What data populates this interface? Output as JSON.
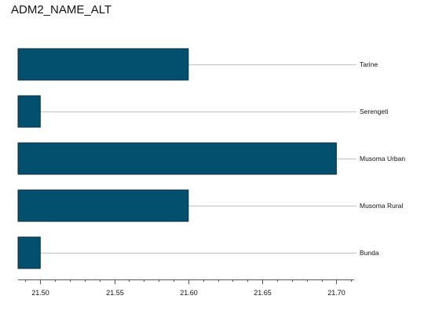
{
  "chart_data": {
    "type": "bar",
    "orientation": "horizontal",
    "title": "ADM2_NAME_ALT",
    "xlabel": "",
    "ylabel": "",
    "categories": [
      "Tarine",
      "Serengeti",
      "Musoma Urban",
      "Musoma Rural",
      "Bunda"
    ],
    "values": [
      21.6,
      21.5,
      21.7,
      21.6,
      21.5
    ],
    "xlim": [
      21.485,
      21.712
    ],
    "x_ticks": [
      21.5,
      21.55,
      21.6,
      21.65,
      21.7
    ],
    "x_tick_labels": [
      "21.50",
      "21.55",
      "21.60",
      "21.65",
      "21.70"
    ],
    "minor_tick_step": 0.01,
    "category_label_position": "right",
    "grid": false,
    "legend": "none",
    "bar_color": "#03506e",
    "bar_edge_color": "#0a2a38",
    "leader_line_color": "#c8c8c8",
    "axis_color": "#555555"
  }
}
